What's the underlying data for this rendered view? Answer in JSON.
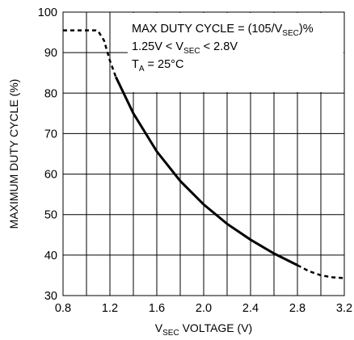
{
  "chart_data": {
    "type": "line",
    "title": "",
    "xlabel": {
      "prefix": "V",
      "sub": "SEC",
      "suffix": " VOLTAGE (V)"
    },
    "ylabel": "MAXIMUM DUTY CYCLE (%)",
    "xlim": [
      0.8,
      3.2
    ],
    "ylim": [
      30,
      100
    ],
    "grid": true,
    "x_major_ticks": [
      "0.8",
      "1.2",
      "1.6",
      "2.0",
      "2.4",
      "2.8",
      "3.2"
    ],
    "x_minor_step": 0.2,
    "y_ticks": [
      "30",
      "40",
      "50",
      "60",
      "70",
      "80",
      "90",
      "100"
    ],
    "annotations": [
      {
        "prefix": "MAX DUTY CYCLE = (105/V",
        "sub": "SEC",
        "suffix": ")%"
      },
      {
        "prefix": "1.25V < V",
        "sub": "SEC",
        "suffix": " < 2.8V"
      },
      {
        "prefix": "T",
        "sub": "A",
        "suffix": " = 25°C"
      }
    ],
    "series": [
      {
        "formula": "105/V",
        "solid_range": [
          1.25,
          2.8
        ],
        "x": [
          0.8,
          1.08,
          1.1,
          1.15,
          1.2,
          1.25,
          1.4,
          1.6,
          1.8,
          2.0,
          2.2,
          2.4,
          2.6,
          2.8,
          2.9,
          3.0,
          3.1,
          3.2
        ],
        "y": [
          95.5,
          95.5,
          95.3,
          93,
          88,
          84,
          75,
          65.6,
          58.3,
          52.5,
          47.7,
          43.8,
          40.4,
          37.5,
          36,
          35,
          34.5,
          34.3
        ]
      }
    ]
  }
}
